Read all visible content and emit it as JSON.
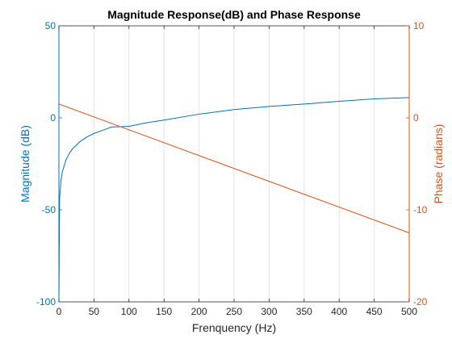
{
  "chart_data": {
    "type": "line",
    "title": "Magnitude Response(dB) and Phase Response",
    "xlabel": "Frenquency (Hz)",
    "ylabel_left": "Magnitude (dB)",
    "ylabel_right": "Phase (radians)",
    "xlim": [
      0,
      500
    ],
    "ylim_left": [
      -100,
      50
    ],
    "ylim_right": [
      -20,
      10
    ],
    "x_ticks": [
      0,
      50,
      100,
      150,
      200,
      250,
      300,
      350,
      400,
      450,
      500
    ],
    "y_ticks_left": [
      -100,
      -50,
      0,
      50
    ],
    "y_ticks_right": [
      -20,
      -10,
      0,
      10
    ],
    "grid": "x-only",
    "series": [
      {
        "axis": "left",
        "color": "#0072BD",
        "x": [
          0,
          1,
          3,
          5,
          10,
          15,
          20,
          30,
          40,
          50,
          75,
          100,
          125,
          150,
          200,
          250,
          300,
          350,
          400,
          450,
          500
        ],
        "y": [
          -100,
          -43.8,
          -33.8,
          -29.2,
          -22.9,
          -19.2,
          -16.6,
          -12.9,
          -10.4,
          -8.5,
          -5.0,
          -4.6,
          -2.7,
          -1.2,
          2.0,
          4.5,
          6.2,
          7.5,
          9.0,
          10.3,
          11.0
        ]
      },
      {
        "axis": "right",
        "color": "#D95319",
        "x": [
          0,
          500
        ],
        "y": [
          1.5,
          -12.5
        ]
      }
    ]
  }
}
